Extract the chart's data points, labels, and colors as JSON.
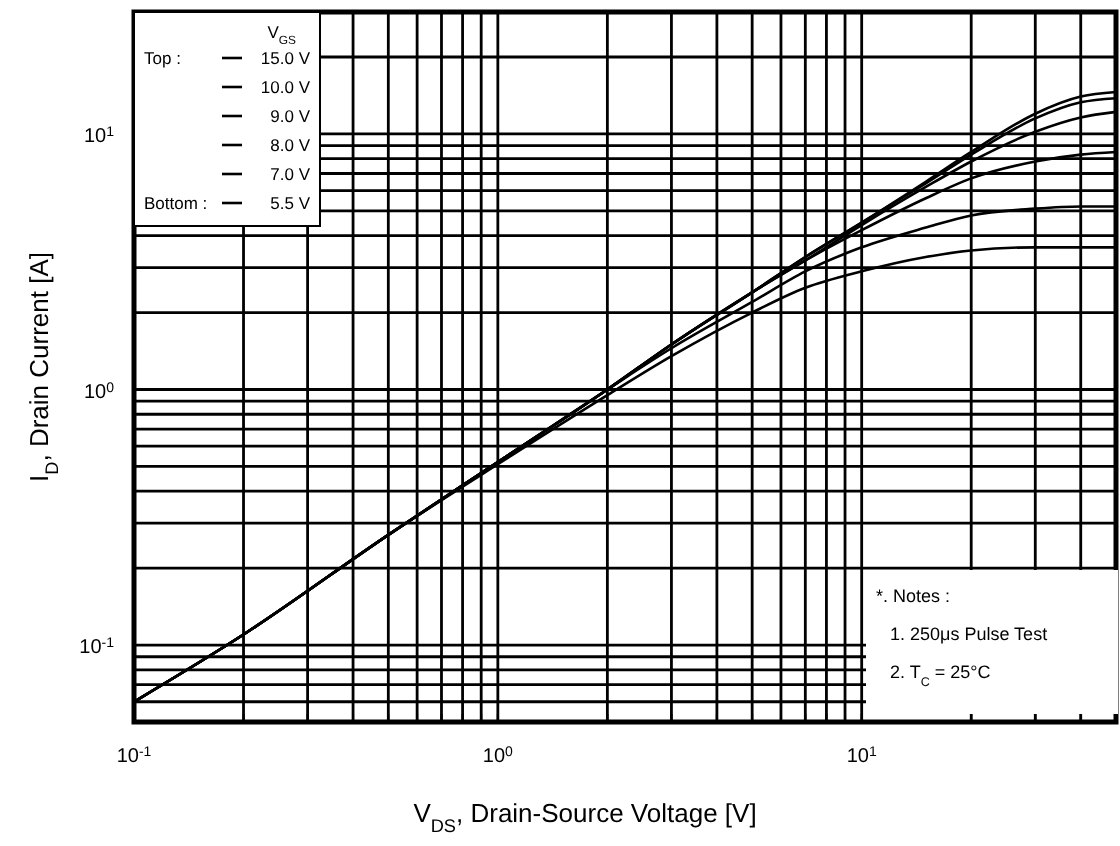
{
  "chart_data": {
    "type": "line",
    "xlabel": "V$_{DS}$, Drain-Source Voltage [V]",
    "ylabel": "I$_{D}$, Drain Current [A]",
    "legend_title": "V$_{GS}$",
    "log": "xy",
    "grid": true,
    "legend": "top left",
    "marker": "none",
    "line_style": "solid",
    "xlim": [
      0.1,
      50
    ],
    "ylim": [
      0.05,
      30
    ],
    "xticks": [
      {
        "value": 0.1,
        "label": "10$^{-1}$"
      },
      {
        "value": 0.2,
        "label": null
      },
      {
        "value": 0.3,
        "label": null
      },
      {
        "value": 0.4,
        "label": null
      },
      {
        "value": 0.5,
        "label": null
      },
      {
        "value": 0.6,
        "label": null
      },
      {
        "value": 0.7,
        "label": null
      },
      {
        "value": 0.8,
        "label": null
      },
      {
        "value": 0.9,
        "label": null
      },
      {
        "value": 1,
        "label": "10$^{0}$"
      },
      {
        "value": 2,
        "label": null
      },
      {
        "value": 3,
        "label": null
      },
      {
        "value": 4,
        "label": null
      },
      {
        "value": 5,
        "label": null
      },
      {
        "value": 6,
        "label": null
      },
      {
        "value": 7,
        "label": null
      },
      {
        "value": 8,
        "label": null
      },
      {
        "value": 9,
        "label": null
      },
      {
        "value": 10,
        "label": "10$^{1}$"
      },
      {
        "value": 20,
        "label": null
      },
      {
        "value": 30,
        "label": null
      },
      {
        "value": 40,
        "label": null
      }
    ],
    "yticks": [
      {
        "value": 0.06,
        "label": null
      },
      {
        "value": 0.07,
        "label": null
      },
      {
        "value": 0.08,
        "label": null
      },
      {
        "value": 0.09,
        "label": null
      },
      {
        "value": 0.1,
        "label": "10$^{-1}$"
      },
      {
        "value": 0.2,
        "label": null
      },
      {
        "value": 0.3,
        "label": null
      },
      {
        "value": 0.4,
        "label": null
      },
      {
        "value": 0.5,
        "label": null
      },
      {
        "value": 0.6,
        "label": null
      },
      {
        "value": 0.7,
        "label": null
      },
      {
        "value": 0.8,
        "label": null
      },
      {
        "value": 0.9,
        "label": null
      },
      {
        "value": 1,
        "label": "10$^{0}$"
      },
      {
        "value": 2,
        "label": null
      },
      {
        "value": 3,
        "label": null
      },
      {
        "value": 4,
        "label": null
      },
      {
        "value": 5,
        "label": null
      },
      {
        "value": 6,
        "label": null
      },
      {
        "value": 7,
        "label": null
      },
      {
        "value": 8,
        "label": null
      },
      {
        "value": 9,
        "label": null
      },
      {
        "value": 10,
        "label": "10$^{1}$"
      },
      {
        "value": 20,
        "label": null
      }
    ],
    "x": [
      0.1,
      0.2,
      0.5,
      1,
      2,
      3,
      5,
      7,
      10,
      15,
      20,
      30,
      40,
      50
    ],
    "series": [
      {
        "name": "15.0 V",
        "color": "#000000",
        "values": [
          0.06,
          0.11,
          0.27,
          0.52,
          1.0,
          1.5,
          2.4,
          3.3,
          4.5,
          6.5,
          8.5,
          12,
          14,
          14.6
        ]
      },
      {
        "name": "10.0 V",
        "color": "#000000",
        "values": [
          0.06,
          0.11,
          0.27,
          0.52,
          1.0,
          1.5,
          2.4,
          3.3,
          4.5,
          6.4,
          8.3,
          11.5,
          13.3,
          13.8
        ]
      },
      {
        "name": "9.0 V",
        "color": "#000000",
        "values": [
          0.06,
          0.11,
          0.27,
          0.52,
          1.0,
          1.5,
          2.4,
          3.2,
          4.4,
          6.2,
          7.8,
          10.2,
          11.6,
          12.2
        ]
      },
      {
        "name": "8.0 V",
        "color": "#000000",
        "values": [
          0.06,
          0.11,
          0.27,
          0.52,
          1.0,
          1.5,
          2.4,
          3.2,
          4.2,
          5.6,
          6.7,
          7.8,
          8.3,
          8.5
        ]
      },
      {
        "name": "7.0 V",
        "color": "#000000",
        "values": [
          0.06,
          0.11,
          0.27,
          0.52,
          1.0,
          1.45,
          2.2,
          2.9,
          3.6,
          4.3,
          4.8,
          5.1,
          5.2,
          5.2
        ]
      },
      {
        "name": "5.5 V",
        "color": "#000000",
        "values": [
          0.06,
          0.11,
          0.27,
          0.51,
          0.95,
          1.35,
          2.0,
          2.5,
          2.9,
          3.3,
          3.5,
          3.6,
          3.6,
          3.6
        ]
      }
    ],
    "annotations": [
      "Top :",
      "Bottom :",
      "*. Notes :",
      "1. 250μs Pulse Test",
      "2. T$_{C}$ = 25°C"
    ]
  }
}
